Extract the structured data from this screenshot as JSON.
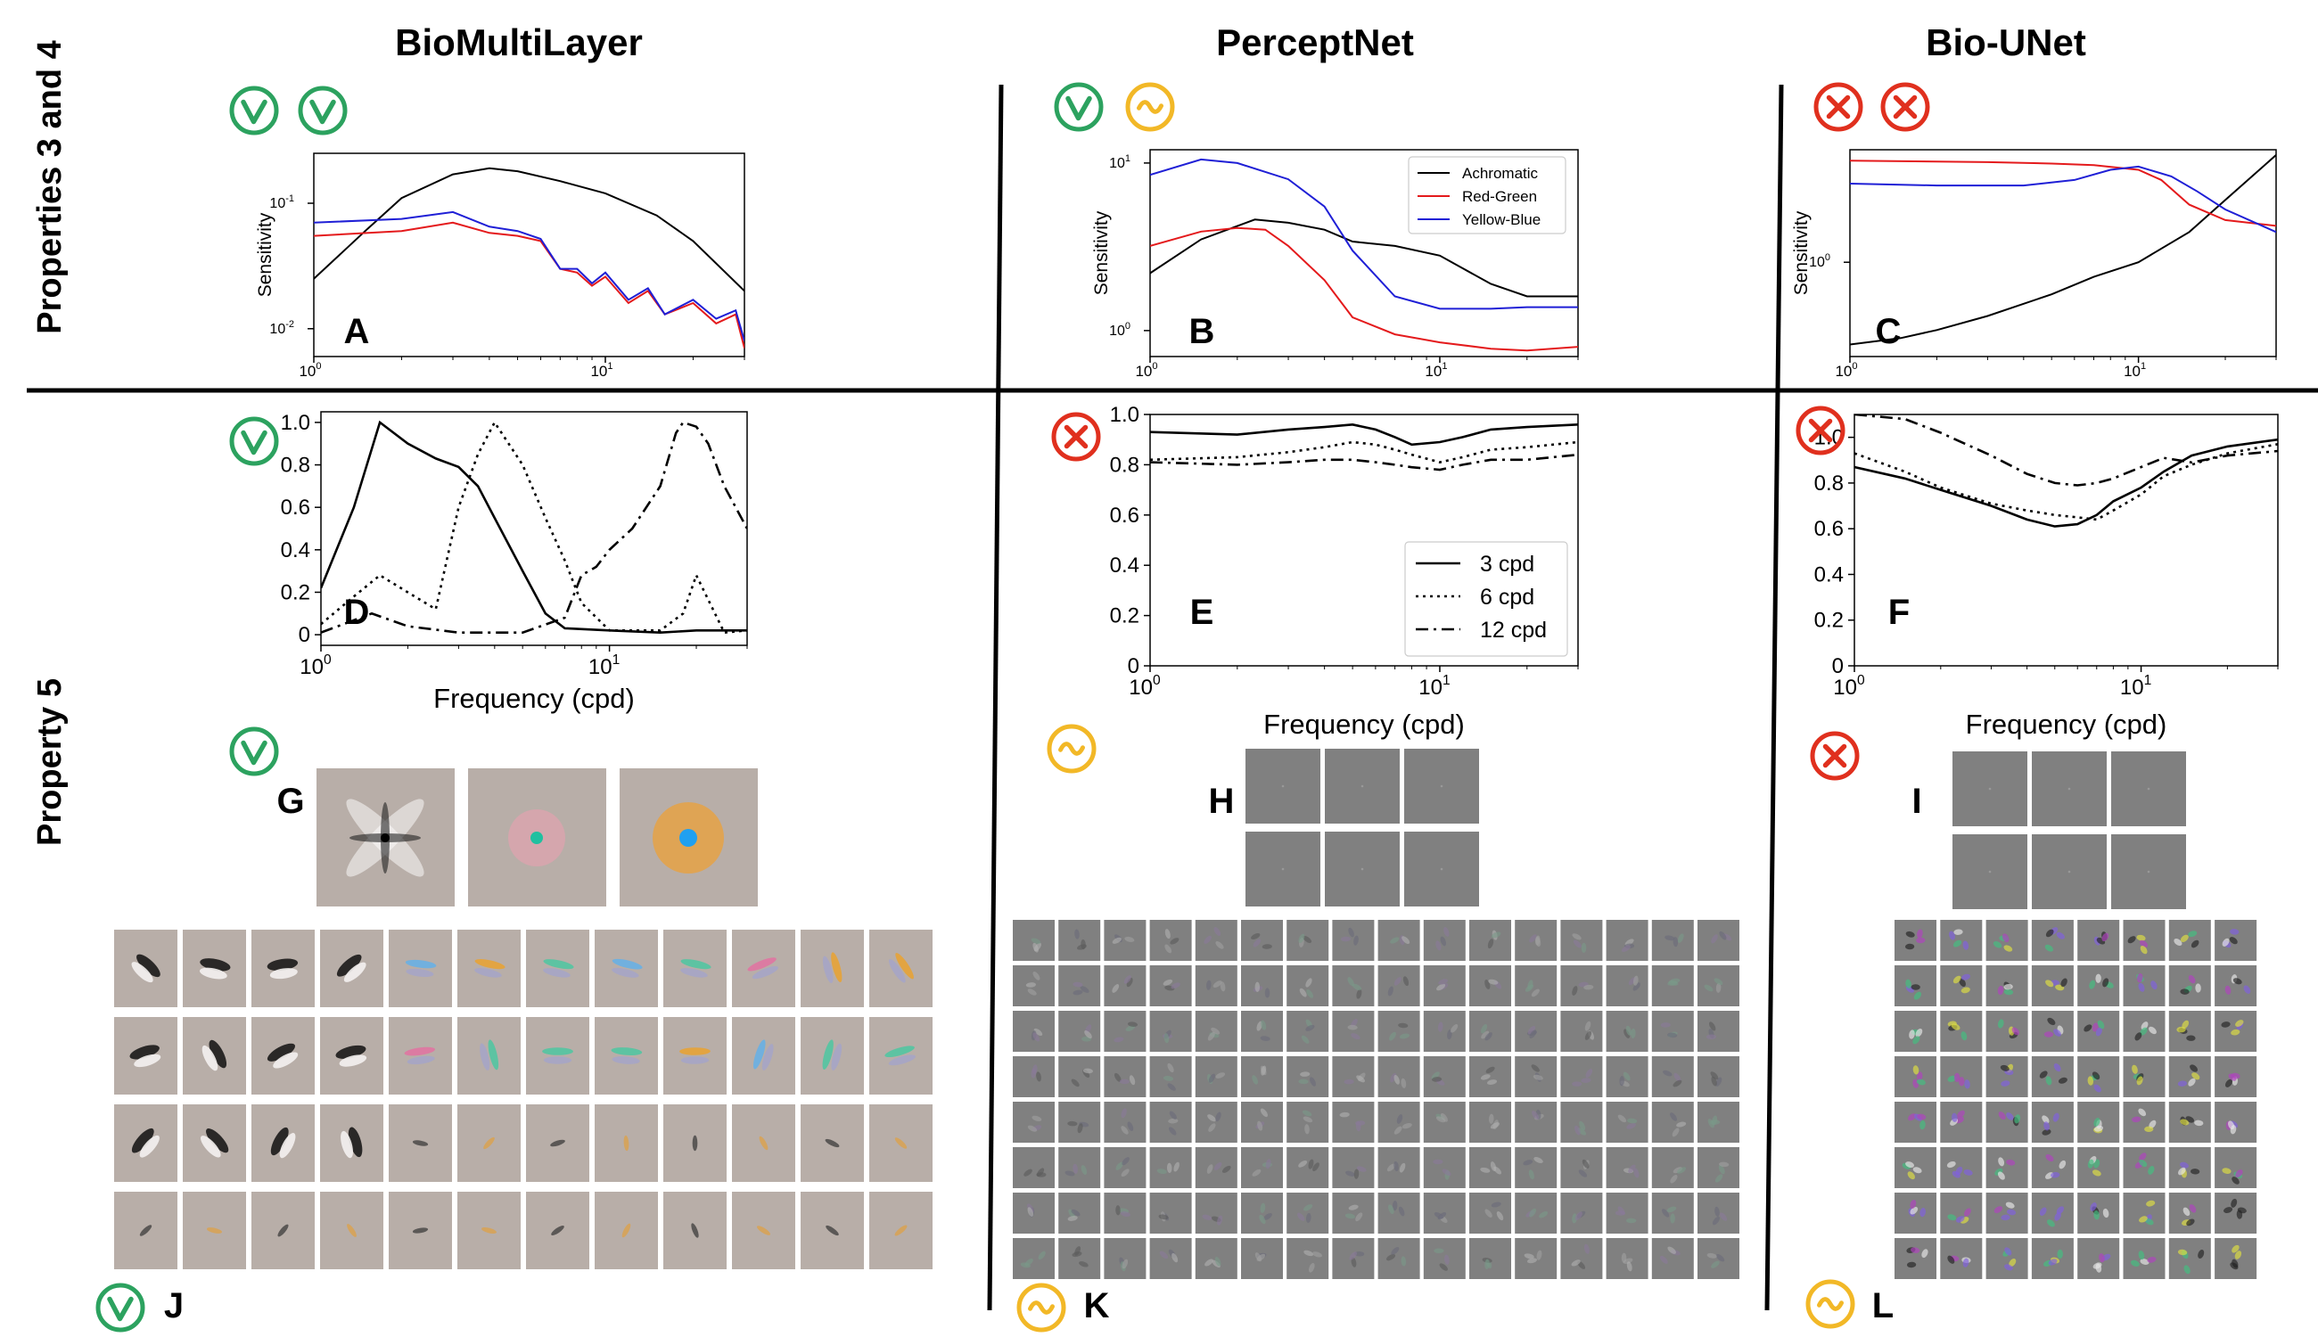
{
  "columns": [
    "BioMultiLayer",
    "PerceptNet",
    "Bio-UNet"
  ],
  "row_labels": [
    "Properties 3 and 4",
    "Property 5"
  ],
  "status_icons": {
    "A_row": [
      [
        "check",
        "check"
      ],
      [
        "check",
        "approx"
      ],
      [
        "cross",
        "cross"
      ]
    ],
    "E_row": [
      "check",
      "cross",
      "cross"
    ],
    "G_row": [
      "check",
      "approx",
      "cross"
    ],
    "J_row": [
      "check",
      "approx",
      "approx"
    ]
  },
  "colors": {
    "check": "#2ca25f",
    "approx": "#f2b827",
    "cross": "#e0301e",
    "achromatic": "#000000",
    "red_green": "#e41a1c",
    "yellow_blue": "#1f1fd6",
    "patch_bg": "#b8aea8",
    "patch_gray": "#808080"
  },
  "panel_letters": {
    "A": "A",
    "B": "B",
    "C": "C",
    "D": "D",
    "E": "E",
    "F": "F",
    "G": "G",
    "H": "H",
    "I": "I",
    "J": "J",
    "K": "K",
    "L": "L"
  },
  "csf_axis": {
    "ylabel": "Sensitivity",
    "x_tick_1": "10",
    "x_tick_10": "10",
    "x_exp_1": "0",
    "x_exp_10": "1"
  },
  "legend_csf": {
    "achromatic": "Achromatic",
    "red_green": "Red-Green",
    "yellow_blue": "Yellow-Blue"
  },
  "legend_masking": {
    "cpd3": "3 cpd",
    "cpd6": "6 cpd",
    "cpd12": "12 cpd"
  },
  "xlabel_freq": "Frequency (cpd)",
  "y_ticks_lin": [
    "0",
    "0.2",
    "0.4",
    "0.6",
    "0.8",
    "1.0"
  ],
  "chart_data": [
    {
      "id": "A",
      "type": "line",
      "title": "",
      "xlabel": "",
      "ylabel": "Sensitivity",
      "xscale": "log",
      "yscale": "log",
      "xlim": [
        1,
        30
      ],
      "ylim": [
        0.006,
        0.25
      ],
      "yticks": [
        "10^-1",
        "10^-2"
      ],
      "series": [
        {
          "name": "Achromatic",
          "x": [
            1,
            1.5,
            2,
            3,
            4,
            5,
            7,
            10,
            15,
            20,
            30
          ],
          "y": [
            0.025,
            0.06,
            0.11,
            0.17,
            0.19,
            0.18,
            0.15,
            0.12,
            0.08,
            0.05,
            0.02
          ]
        },
        {
          "name": "Red-Green",
          "x": [
            1,
            2,
            3,
            4,
            5,
            6,
            7,
            8,
            9,
            10,
            12,
            14,
            16,
            20,
            24,
            28,
            30
          ],
          "y": [
            0.055,
            0.06,
            0.07,
            0.058,
            0.055,
            0.05,
            0.03,
            0.028,
            0.022,
            0.026,
            0.016,
            0.02,
            0.013,
            0.016,
            0.011,
            0.013,
            0.007
          ]
        },
        {
          "name": "Yellow-Blue",
          "x": [
            1,
            2,
            3,
            4,
            5,
            6,
            7,
            8,
            9,
            10,
            12,
            14,
            16,
            20,
            24,
            28,
            30
          ],
          "y": [
            0.07,
            0.075,
            0.085,
            0.065,
            0.06,
            0.052,
            0.03,
            0.03,
            0.023,
            0.028,
            0.017,
            0.021,
            0.013,
            0.017,
            0.012,
            0.014,
            0.008
          ]
        }
      ]
    },
    {
      "id": "B",
      "type": "line",
      "xlabel": "",
      "ylabel": "Sensitivity",
      "xscale": "log",
      "yscale": "log",
      "xlim": [
        1,
        30
      ],
      "ylim": [
        0.7,
        12
      ],
      "yticks": [
        "10^1",
        "10^0"
      ],
      "legend_position": "top-right",
      "series": [
        {
          "name": "Achromatic",
          "x": [
            1,
            1.5,
            2.3,
            3,
            4,
            5,
            7,
            10,
            15,
            20,
            30
          ],
          "y": [
            2.2,
            3.5,
            4.6,
            4.4,
            4.0,
            3.4,
            3.2,
            2.8,
            1.9,
            1.6,
            1.6
          ]
        },
        {
          "name": "Red-Green",
          "x": [
            1,
            1.5,
            2,
            2.5,
            3,
            4,
            5,
            7,
            10,
            15,
            20,
            30
          ],
          "y": [
            3.2,
            3.9,
            4.1,
            4.0,
            3.2,
            2.0,
            1.2,
            0.95,
            0.85,
            0.78,
            0.76,
            0.8
          ]
        },
        {
          "name": "Yellow-Blue",
          "x": [
            1,
            1.5,
            2,
            3,
            4,
            5,
            7,
            10,
            15,
            20,
            30
          ],
          "y": [
            8.5,
            10.5,
            10.0,
            8.0,
            5.5,
            3.0,
            1.6,
            1.35,
            1.35,
            1.38,
            1.38
          ]
        }
      ]
    },
    {
      "id": "C",
      "type": "line",
      "xlabel": "",
      "ylabel": "Sensitivity",
      "xscale": "log",
      "yscale": "log",
      "xlim": [
        1,
        30
      ],
      "ylim": [
        0.35,
        3.5
      ],
      "yticks": [
        "10^0"
      ],
      "series": [
        {
          "name": "Achromatic",
          "x": [
            1,
            1.5,
            2,
            3,
            5,
            7,
            10,
            15,
            20,
            30
          ],
          "y": [
            0.4,
            0.43,
            0.47,
            0.55,
            0.7,
            0.85,
            1.0,
            1.4,
            2.0,
            3.3
          ]
        },
        {
          "name": "Red-Green",
          "x": [
            1,
            3,
            5,
            7,
            10,
            12,
            15,
            20,
            30
          ],
          "y": [
            3.1,
            3.05,
            3.0,
            2.95,
            2.8,
            2.5,
            1.9,
            1.6,
            1.5
          ]
        },
        {
          "name": "Yellow-Blue",
          "x": [
            1,
            2,
            4,
            6,
            8,
            10,
            13,
            16,
            20,
            30
          ],
          "y": [
            2.4,
            2.35,
            2.35,
            2.5,
            2.8,
            2.9,
            2.6,
            2.2,
            1.8,
            1.4
          ]
        }
      ]
    },
    {
      "id": "D",
      "type": "line",
      "xlabel": "Frequency (cpd)",
      "xscale": "log",
      "xlim": [
        1,
        30
      ],
      "ylim": [
        -0.05,
        1.05
      ],
      "series": [
        {
          "name": "3 cpd",
          "x": [
            1,
            1.3,
            1.6,
            2,
            2.5,
            3,
            3.5,
            4,
            5,
            6,
            7,
            10,
            15,
            20,
            30
          ],
          "y": [
            0.22,
            0.6,
            1.0,
            0.9,
            0.83,
            0.79,
            0.7,
            0.55,
            0.3,
            0.1,
            0.03,
            0.02,
            0.01,
            0.02,
            0.02
          ]
        },
        {
          "name": "6 cpd",
          "x": [
            1,
            1.3,
            1.6,
            2,
            2.5,
            3,
            3.5,
            4,
            5,
            6,
            7,
            8,
            10,
            15,
            18,
            20,
            25,
            30
          ],
          "y": [
            0.05,
            0.18,
            0.28,
            0.2,
            0.12,
            0.6,
            0.85,
            1.0,
            0.8,
            0.55,
            0.35,
            0.15,
            0.02,
            0.02,
            0.1,
            0.28,
            0.01,
            0.02
          ]
        },
        {
          "name": "12 cpd",
          "x": [
            1,
            1.5,
            2,
            3,
            5,
            7,
            8,
            9,
            10,
            12,
            15,
            17,
            18,
            20,
            22,
            25,
            30
          ],
          "y": [
            0.01,
            0.1,
            0.04,
            0.01,
            0.01,
            0.08,
            0.28,
            0.32,
            0.4,
            0.5,
            0.7,
            0.95,
            1.0,
            0.98,
            0.9,
            0.7,
            0.5
          ]
        }
      ]
    },
    {
      "id": "E",
      "type": "line",
      "xlabel": "Frequency (cpd)",
      "xscale": "log",
      "xlim": [
        1,
        30
      ],
      "ylim": [
        0,
        1.0
      ],
      "legend_position": "bottom-right",
      "series": [
        {
          "name": "3 cpd",
          "x": [
            1,
            2,
            3,
            4,
            5,
            6,
            7,
            8,
            10,
            12,
            15,
            20,
            30
          ],
          "y": [
            0.93,
            0.92,
            0.94,
            0.95,
            0.96,
            0.94,
            0.91,
            0.88,
            0.89,
            0.91,
            0.94,
            0.95,
            0.96
          ]
        },
        {
          "name": "6 cpd",
          "x": [
            1,
            2,
            3,
            4,
            5,
            6,
            7,
            8,
            10,
            12,
            15,
            20,
            30
          ],
          "y": [
            0.82,
            0.83,
            0.85,
            0.87,
            0.89,
            0.88,
            0.86,
            0.84,
            0.81,
            0.83,
            0.86,
            0.87,
            0.89
          ]
        },
        {
          "name": "12 cpd",
          "x": [
            1,
            2,
            3,
            4,
            5,
            6,
            7,
            8,
            10,
            12,
            15,
            20,
            30
          ],
          "y": [
            0.81,
            0.8,
            0.81,
            0.82,
            0.82,
            0.81,
            0.8,
            0.79,
            0.78,
            0.8,
            0.82,
            0.82,
            0.84
          ]
        }
      ]
    },
    {
      "id": "F",
      "type": "line",
      "xlabel": "Frequency (cpd)",
      "xscale": "log",
      "xlim": [
        1,
        30
      ],
      "ylim": [
        0,
        1.1
      ],
      "series": [
        {
          "name": "3 cpd",
          "x": [
            1,
            1.5,
            2,
            3,
            4,
            5,
            6,
            7,
            8,
            10,
            12,
            15,
            20,
            30
          ],
          "y": [
            0.87,
            0.82,
            0.77,
            0.7,
            0.64,
            0.61,
            0.62,
            0.66,
            0.72,
            0.78,
            0.85,
            0.92,
            0.96,
            0.99
          ]
        },
        {
          "name": "6 cpd",
          "x": [
            1,
            1.5,
            2,
            3,
            4,
            5,
            6,
            7,
            8,
            10,
            12,
            15,
            20,
            30
          ],
          "y": [
            0.93,
            0.85,
            0.78,
            0.71,
            0.68,
            0.66,
            0.65,
            0.64,
            0.68,
            0.75,
            0.83,
            0.88,
            0.93,
            0.97
          ]
        },
        {
          "name": "12 cpd",
          "x": [
            1,
            1.5,
            2,
            3,
            4,
            5,
            6,
            7,
            8,
            10,
            12,
            15,
            20,
            30
          ],
          "y": [
            1.1,
            1.08,
            1.02,
            0.92,
            0.84,
            0.8,
            0.79,
            0.8,
            0.82,
            0.87,
            0.91,
            0.89,
            0.92,
            0.94
          ]
        }
      ]
    }
  ]
}
